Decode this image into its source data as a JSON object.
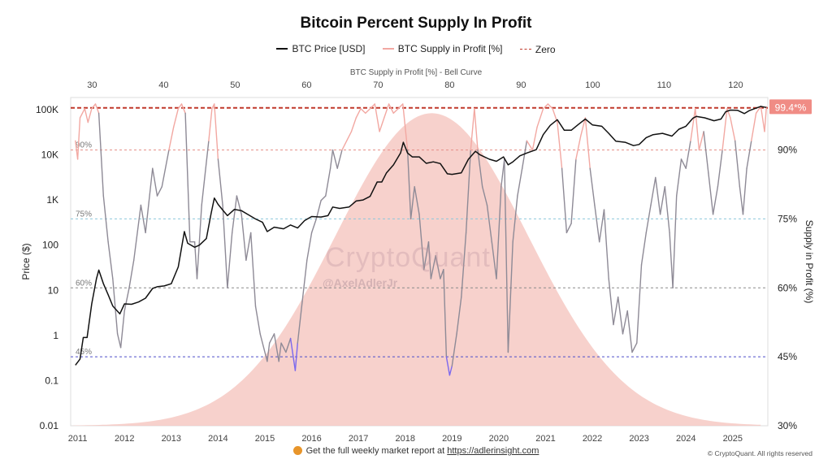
{
  "colors": {
    "price": "#111111",
    "supply_high": "#f2a8a2",
    "supply_mid": "#8e8a96",
    "supply_low": "#7b68ee",
    "zero": "#c0392b",
    "bell": "#f6c9c3",
    "line_90": "#e58e86",
    "line_75": "#8cc8dc",
    "line_60": "#8a8a8a",
    "line_45": "#4d4dc9",
    "badge": "#f08c85"
  },
  "header": {
    "title": "Bitcoin Percent Supply In Profit"
  },
  "legend": {
    "price": "BTC Price [USD]",
    "supply": "BTC Supply in Profit [%]",
    "zero": "Zero"
  },
  "footer": {
    "report_text": "Get the full weekly market report at",
    "report_link": "https://adlerinsight.com",
    "copyright": "© CryptoQuant. All rights reserved"
  },
  "watermark": {
    "brand": "CryptoQuant",
    "handle": "@AxelAdlerJr"
  },
  "chart_data": {
    "type": "line",
    "title": "Bitcoin Percent Supply In Profit",
    "top_axis_label": "BTC Supply in Profit [%] - Bell Curve",
    "top_ticks": [
      "30",
      "40",
      "50",
      "60",
      "70",
      "80",
      "90",
      "100",
      "110",
      "120"
    ],
    "top_range": [
      27,
      124.5
    ],
    "ylabel_left": "Price ($)",
    "ylabel_right": "Supply in Profit (%)",
    "left_scale": "log",
    "left_range": [
      0.01,
      100000
    ],
    "left_ticks": [
      "0.01",
      "0.1",
      "1",
      "10",
      "100",
      "1K",
      "10K",
      "100K"
    ],
    "right_range": [
      30,
      100
    ],
    "right_ticks": [
      "30%",
      "45%",
      "60%",
      "75%",
      "90%"
    ],
    "x_range": [
      2010.85,
      2025.75
    ],
    "x_ticks": [
      "2011",
      "2012",
      "2013",
      "2014",
      "2015",
      "2016",
      "2017",
      "2018",
      "2019",
      "2020",
      "2021",
      "2022",
      "2023",
      "2024",
      "2025"
    ],
    "reference_lines": [
      {
        "label": "90%",
        "value": 90
      },
      {
        "label": "75%",
        "value": 75
      },
      {
        "label": "60%",
        "value": 60
      },
      {
        "label": "45%",
        "value": 45
      }
    ],
    "current_value_label": "99.4*%",
    "zero_price_level": 110000,
    "bell_curve": {
      "peak_top_axis": 77.5,
      "peak_percent": 98,
      "sigma": 13.5,
      "base_percent": 30
    },
    "series": [
      {
        "name": "BTC Price [USD]",
        "axis": "left",
        "points": [
          [
            2010.95,
            0.22
          ],
          [
            2011.05,
            0.3
          ],
          [
            2011.12,
            0.9
          ],
          [
            2011.2,
            0.9
          ],
          [
            2011.3,
            5
          ],
          [
            2011.4,
            18
          ],
          [
            2011.45,
            28
          ],
          [
            2011.55,
            14
          ],
          [
            2011.65,
            8
          ],
          [
            2011.75,
            4.5
          ],
          [
            2011.9,
            3
          ],
          [
            2012.0,
            5
          ],
          [
            2012.15,
            4.9
          ],
          [
            2012.3,
            5.5
          ],
          [
            2012.45,
            6.7
          ],
          [
            2012.6,
            11
          ],
          [
            2012.7,
            12
          ],
          [
            2012.85,
            12.5
          ],
          [
            2013.0,
            14
          ],
          [
            2013.15,
            33
          ],
          [
            2013.28,
            200
          ],
          [
            2013.35,
            110
          ],
          [
            2013.5,
            90
          ],
          [
            2013.6,
            100
          ],
          [
            2013.75,
            140
          ],
          [
            2013.85,
            500
          ],
          [
            2013.92,
            1100
          ],
          [
            2014.0,
            800
          ],
          [
            2014.1,
            600
          ],
          [
            2014.2,
            450
          ],
          [
            2014.35,
            620
          ],
          [
            2014.5,
            580
          ],
          [
            2014.65,
            470
          ],
          [
            2014.8,
            380
          ],
          [
            2014.95,
            320
          ],
          [
            2015.05,
            200
          ],
          [
            2015.2,
            250
          ],
          [
            2015.4,
            230
          ],
          [
            2015.55,
            280
          ],
          [
            2015.7,
            240
          ],
          [
            2015.85,
            350
          ],
          [
            2016.0,
            430
          ],
          [
            2016.2,
            420
          ],
          [
            2016.35,
            450
          ],
          [
            2016.45,
            700
          ],
          [
            2016.6,
            650
          ],
          [
            2016.8,
            700
          ],
          [
            2016.95,
            950
          ],
          [
            2017.1,
            1000
          ],
          [
            2017.25,
            1200
          ],
          [
            2017.4,
            2500
          ],
          [
            2017.5,
            2500
          ],
          [
            2017.6,
            4000
          ],
          [
            2017.75,
            6000
          ],
          [
            2017.9,
            11000
          ],
          [
            2017.96,
            19000
          ],
          [
            2018.05,
            11000
          ],
          [
            2018.15,
            9000
          ],
          [
            2018.3,
            9000
          ],
          [
            2018.45,
            6500
          ],
          [
            2018.6,
            7000
          ],
          [
            2018.75,
            6400
          ],
          [
            2018.9,
            3800
          ],
          [
            2019.0,
            3700
          ],
          [
            2019.2,
            4000
          ],
          [
            2019.35,
            8000
          ],
          [
            2019.5,
            12000
          ],
          [
            2019.6,
            10000
          ],
          [
            2019.8,
            8000
          ],
          [
            2019.95,
            7200
          ],
          [
            2020.1,
            9000
          ],
          [
            2020.2,
            6000
          ],
          [
            2020.3,
            7000
          ],
          [
            2020.45,
            9500
          ],
          [
            2020.6,
            11000
          ],
          [
            2020.8,
            13000
          ],
          [
            2020.95,
            28000
          ],
          [
            2021.1,
            45000
          ],
          [
            2021.25,
            60000
          ],
          [
            2021.4,
            35000
          ],
          [
            2021.55,
            35000
          ],
          [
            2021.7,
            47000
          ],
          [
            2021.85,
            62000
          ],
          [
            2022.0,
            46000
          ],
          [
            2022.2,
            43000
          ],
          [
            2022.35,
            30000
          ],
          [
            2022.5,
            20000
          ],
          [
            2022.7,
            19000
          ],
          [
            2022.88,
            16000
          ],
          [
            2023.0,
            17000
          ],
          [
            2023.15,
            24000
          ],
          [
            2023.3,
            28000
          ],
          [
            2023.5,
            30000
          ],
          [
            2023.7,
            26000
          ],
          [
            2023.85,
            37000
          ],
          [
            2024.0,
            43000
          ],
          [
            2024.15,
            65000
          ],
          [
            2024.22,
            71000
          ],
          [
            2024.4,
            66000
          ],
          [
            2024.6,
            57000
          ],
          [
            2024.75,
            62000
          ],
          [
            2024.85,
            90000
          ],
          [
            2024.95,
            98000
          ],
          [
            2025.1,
            97000
          ],
          [
            2025.25,
            82000
          ],
          [
            2025.35,
            95000
          ],
          [
            2025.5,
            108000
          ],
          [
            2025.6,
            118000
          ],
          [
            2025.72,
            112000
          ]
        ]
      },
      {
        "name": "BTC Supply in Profit [%]",
        "axis": "right",
        "points": [
          [
            2010.95,
            92
          ],
          [
            2011.0,
            88
          ],
          [
            2011.05,
            97
          ],
          [
            2011.15,
            99
          ],
          [
            2011.22,
            96
          ],
          [
            2011.3,
            99
          ],
          [
            2011.38,
            100
          ],
          [
            2011.45,
            98
          ],
          [
            2011.55,
            80
          ],
          [
            2011.65,
            70
          ],
          [
            2011.75,
            62
          ],
          [
            2011.85,
            50
          ],
          [
            2011.92,
            47
          ],
          [
            2012.0,
            55
          ],
          [
            2012.1,
            60
          ],
          [
            2012.2,
            66
          ],
          [
            2012.35,
            78
          ],
          [
            2012.45,
            72
          ],
          [
            2012.6,
            86
          ],
          [
            2012.7,
            80
          ],
          [
            2012.8,
            82
          ],
          [
            2012.95,
            90
          ],
          [
            2013.05,
            95
          ],
          [
            2013.15,
            99
          ],
          [
            2013.22,
            100
          ],
          [
            2013.3,
            98
          ],
          [
            2013.4,
            70
          ],
          [
            2013.5,
            70
          ],
          [
            2013.55,
            62
          ],
          [
            2013.65,
            78
          ],
          [
            2013.8,
            92
          ],
          [
            2013.87,
            99
          ],
          [
            2013.92,
            100
          ],
          [
            2014.0,
            88
          ],
          [
            2014.1,
            78
          ],
          [
            2014.2,
            60
          ],
          [
            2014.3,
            72
          ],
          [
            2014.4,
            80
          ],
          [
            2014.5,
            76
          ],
          [
            2014.6,
            66
          ],
          [
            2014.7,
            72
          ],
          [
            2014.8,
            56
          ],
          [
            2014.9,
            50
          ],
          [
            2015.05,
            44
          ],
          [
            2015.1,
            48
          ],
          [
            2015.2,
            50
          ],
          [
            2015.3,
            44
          ],
          [
            2015.35,
            48
          ],
          [
            2015.45,
            46
          ],
          [
            2015.55,
            49
          ],
          [
            2015.65,
            42
          ],
          [
            2015.7,
            48
          ],
          [
            2015.8,
            57
          ],
          [
            2015.9,
            66
          ],
          [
            2016.0,
            72
          ],
          [
            2016.1,
            75
          ],
          [
            2016.2,
            79
          ],
          [
            2016.3,
            80
          ],
          [
            2016.4,
            86
          ],
          [
            2016.45,
            90
          ],
          [
            2016.55,
            86
          ],
          [
            2016.65,
            90
          ],
          [
            2016.75,
            92
          ],
          [
            2016.85,
            94
          ],
          [
            2016.95,
            97
          ],
          [
            2017.05,
            99
          ],
          [
            2017.15,
            98
          ],
          [
            2017.25,
            99
          ],
          [
            2017.35,
            100
          ],
          [
            2017.45,
            94
          ],
          [
            2017.55,
            97
          ],
          [
            2017.65,
            100
          ],
          [
            2017.75,
            98
          ],
          [
            2017.85,
            99
          ],
          [
            2017.95,
            100
          ],
          [
            2018.05,
            90
          ],
          [
            2018.12,
            75
          ],
          [
            2018.2,
            82
          ],
          [
            2018.3,
            76
          ],
          [
            2018.4,
            64
          ],
          [
            2018.5,
            70
          ],
          [
            2018.55,
            62
          ],
          [
            2018.65,
            67
          ],
          [
            2018.75,
            62
          ],
          [
            2018.82,
            64
          ],
          [
            2018.88,
            45
          ],
          [
            2018.95,
            41
          ],
          [
            2019.0,
            43
          ],
          [
            2019.1,
            50
          ],
          [
            2019.2,
            58
          ],
          [
            2019.3,
            72
          ],
          [
            2019.4,
            90
          ],
          [
            2019.48,
            99
          ],
          [
            2019.55,
            90
          ],
          [
            2019.65,
            82
          ],
          [
            2019.75,
            78
          ],
          [
            2019.85,
            70
          ],
          [
            2019.95,
            62
          ],
          [
            2020.05,
            82
          ],
          [
            2020.12,
            88
          ],
          [
            2020.2,
            46
          ],
          [
            2020.3,
            70
          ],
          [
            2020.4,
            80
          ],
          [
            2020.5,
            86
          ],
          [
            2020.6,
            92
          ],
          [
            2020.72,
            90
          ],
          [
            2020.82,
            95
          ],
          [
            2020.95,
            99
          ],
          [
            2021.05,
            100
          ],
          [
            2021.15,
            99
          ],
          [
            2021.25,
            96
          ],
          [
            2021.35,
            86
          ],
          [
            2021.45,
            72
          ],
          [
            2021.55,
            74
          ],
          [
            2021.65,
            88
          ],
          [
            2021.75,
            93
          ],
          [
            2021.85,
            97
          ],
          [
            2021.95,
            86
          ],
          [
            2022.05,
            78
          ],
          [
            2022.15,
            70
          ],
          [
            2022.25,
            77
          ],
          [
            2022.35,
            62
          ],
          [
            2022.45,
            52
          ],
          [
            2022.55,
            58
          ],
          [
            2022.65,
            50
          ],
          [
            2022.75,
            55
          ],
          [
            2022.85,
            46
          ],
          [
            2022.95,
            48
          ],
          [
            2023.05,
            65
          ],
          [
            2023.15,
            72
          ],
          [
            2023.25,
            78
          ],
          [
            2023.35,
            84
          ],
          [
            2023.45,
            76
          ],
          [
            2023.55,
            82
          ],
          [
            2023.65,
            72
          ],
          [
            2023.72,
            60
          ],
          [
            2023.8,
            80
          ],
          [
            2023.9,
            88
          ],
          [
            2024.0,
            86
          ],
          [
            2024.1,
            92
          ],
          [
            2024.2,
            99
          ],
          [
            2024.28,
            90
          ],
          [
            2024.38,
            94
          ],
          [
            2024.48,
            85
          ],
          [
            2024.58,
            76
          ],
          [
            2024.68,
            82
          ],
          [
            2024.78,
            90
          ],
          [
            2024.88,
            99
          ],
          [
            2024.95,
            97
          ],
          [
            2025.05,
            92
          ],
          [
            2025.15,
            82
          ],
          [
            2025.22,
            76
          ],
          [
            2025.3,
            86
          ],
          [
            2025.4,
            92
          ],
          [
            2025.5,
            98
          ],
          [
            2025.6,
            99.5
          ],
          [
            2025.68,
            94
          ],
          [
            2025.72,
            99.4
          ]
        ]
      }
    ]
  }
}
